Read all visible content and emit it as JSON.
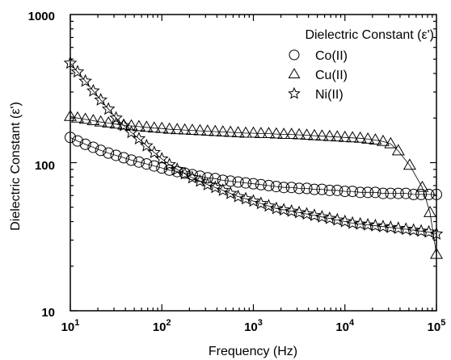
{
  "chart_data": {
    "type": "scatter",
    "xlabel": "Frequency (Hz)",
    "ylabel": "Dielectric Constant (ε')",
    "x_scale": "log",
    "y_scale": "log",
    "xlim": [
      10,
      100000
    ],
    "ylim": [
      10,
      1000
    ],
    "x_ticks": [
      10,
      100,
      1000,
      10000,
      100000
    ],
    "x_tick_labels": [
      {
        "base": "10",
        "exp": "1"
      },
      {
        "base": "10",
        "exp": "2"
      },
      {
        "base": "10",
        "exp": "3"
      },
      {
        "base": "10",
        "exp": "4"
      },
      {
        "base": "10",
        "exp": "5"
      }
    ],
    "y_ticks": [
      10,
      100,
      1000
    ],
    "y_tick_labels": [
      "10",
      "100",
      "1000"
    ],
    "legend": {
      "title": "Dielectric Constant (ε')",
      "position": "top-right"
    },
    "grid": false,
    "series": [
      {
        "name": "Co(II)",
        "marker": "circle",
        "x": [
          10,
          12,
          14.6,
          17.8,
          21.5,
          26.1,
          31.6,
          38.3,
          46.4,
          56.2,
          68.1,
          82.5,
          100,
          121,
          147,
          178,
          215,
          261,
          316,
          383,
          464,
          562,
          681,
          825,
          1000,
          1210,
          1470,
          1780,
          2150,
          2610,
          3160,
          3830,
          4640,
          5620,
          6810,
          8250,
          10000,
          12100,
          14700,
          17800,
          21500,
          26100,
          31600,
          38300,
          46400,
          56200,
          68100,
          82500,
          100000
        ],
        "y": [
          148,
          140,
          133,
          127,
          121,
          116,
          112,
          108,
          104,
          101,
          98,
          95,
          92,
          89,
          87,
          85,
          83,
          81,
          79,
          78,
          76,
          75,
          74,
          73,
          72,
          71,
          70,
          69,
          68,
          68,
          67,
          67,
          66,
          66,
          65,
          65,
          64,
          64,
          63,
          63,
          63,
          62,
          62,
          62,
          62,
          61,
          61,
          61,
          61
        ]
      },
      {
        "name": "Cu(II)",
        "marker": "triangle",
        "x": [
          10,
          12,
          14.6,
          17.8,
          21.5,
          26.1,
          31.6,
          38.3,
          46.4,
          56.2,
          68.1,
          82.5,
          100,
          121,
          147,
          178,
          215,
          261,
          316,
          383,
          464,
          562,
          681,
          825,
          1000,
          1210,
          1470,
          1780,
          2150,
          2610,
          3160,
          3830,
          4640,
          5620,
          6810,
          8250,
          10000,
          12100,
          14700,
          17800,
          21500,
          26100,
          31600,
          38300,
          51000,
          70000,
          85000,
          100000
        ],
        "y": [
          205,
          200,
          196,
          192,
          188,
          185,
          182,
          179,
          177,
          175,
          173,
          171,
          170,
          168,
          167,
          166,
          165,
          164,
          163,
          162,
          161,
          160,
          159,
          158,
          158,
          157,
          157,
          156,
          155,
          155,
          154,
          153,
          152,
          151,
          150,
          149,
          148,
          147,
          146,
          144,
          142,
          139,
          134,
          120,
          96,
          68,
          46,
          24
        ]
      },
      {
        "name": "Ni(II)",
        "marker": "star",
        "x": [
          10,
          12,
          14.6,
          17.8,
          21.5,
          26.1,
          31.6,
          38.3,
          46.4,
          56.2,
          68.1,
          82.5,
          100,
          121,
          147,
          178,
          215,
          261,
          316,
          383,
          464,
          562,
          681,
          825,
          1000,
          1210,
          1470,
          1780,
          2150,
          2610,
          3160,
          3830,
          4640,
          5620,
          6810,
          8250,
          10000,
          12100,
          14700,
          17800,
          21500,
          26100,
          31600,
          38300,
          46400,
          56200,
          68100,
          82500,
          100000
        ],
        "y": [
          470,
          410,
          355,
          305,
          265,
          230,
          200,
          178,
          160,
          145,
          130,
          117,
          106,
          97,
          90,
          84,
          79,
          75,
          71,
          68,
          65,
          62,
          59,
          57,
          55,
          53,
          51,
          49,
          48,
          47,
          46,
          45,
          44,
          43,
          42,
          41,
          40,
          39,
          38.5,
          38,
          37.5,
          37,
          36.5,
          36,
          35.5,
          35,
          34.5,
          34,
          33
        ]
      }
    ]
  }
}
